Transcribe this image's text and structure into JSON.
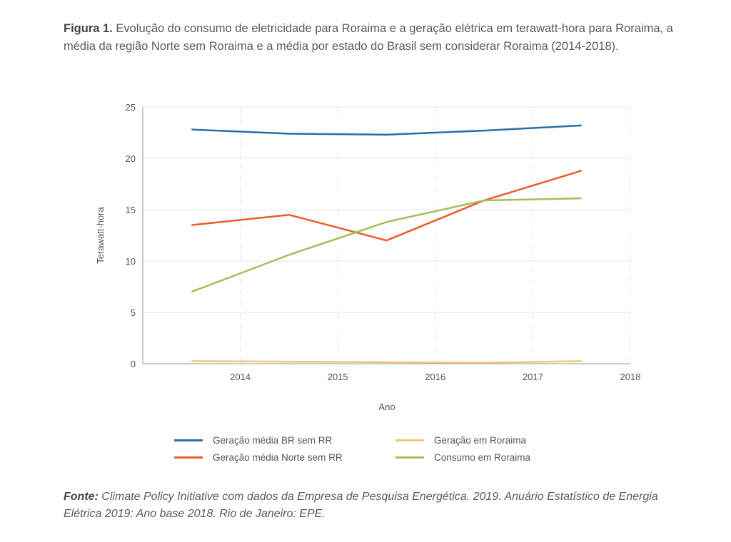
{
  "caption": {
    "label": "Figura 1.",
    "text": " Evolução do consumo de eletricidade para Roraima e a geração elétrica em terawatt-hora para Roraima, a média da região Norte sem Roraima e a média por estado do Brasil sem considerar Roraima (2014-2018)."
  },
  "source": {
    "label": "Fonte:",
    "text": " Climate Policy Initiative com dados da Empresa de Pesquisa Energética. 2019. Anuário Estatístico de Energia Elétrica 2019: Ano base 2018. Rio de Janeiro: EPE."
  },
  "chart_data": {
    "type": "line",
    "title": "",
    "xlabel": "Ano",
    "ylabel": "Terawatt-hora",
    "x_ticks": [
      "2014",
      "2015",
      "2016",
      "2017",
      "2018"
    ],
    "x": [
      2013.5,
      2014.5,
      2015.5,
      2016.5,
      2017.5
    ],
    "xlim": [
      2013,
      2018
    ],
    "ylim": [
      0,
      25
    ],
    "y_ticks": [
      0,
      5,
      10,
      15,
      20,
      25
    ],
    "grid": true,
    "legend_position": "bottom",
    "series": [
      {
        "name": "Geração média BR sem RR",
        "color": "#2b6ea6",
        "values": [
          22.8,
          22.4,
          22.3,
          22.7,
          23.2
        ]
      },
      {
        "name": "Geração média Norte sem RR",
        "color": "#ee5a2b",
        "values": [
          13.5,
          14.5,
          12.0,
          15.9,
          18.8
        ]
      },
      {
        "name": "Geração em Roraima",
        "color": "#eec77a",
        "values": [
          0.25,
          0.2,
          0.15,
          0.1,
          0.25
        ]
      },
      {
        "name": "Consumo em Roraima",
        "color": "#a3bf5a",
        "values": [
          7.0,
          10.6,
          13.8,
          15.9,
          16.1
        ]
      }
    ]
  }
}
